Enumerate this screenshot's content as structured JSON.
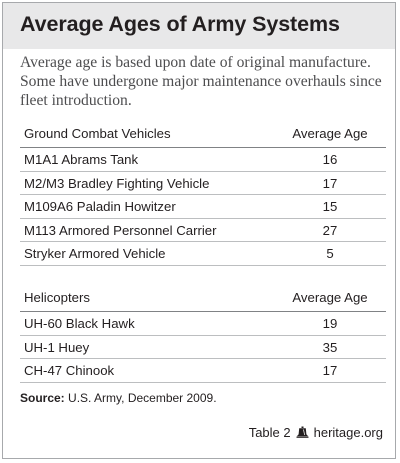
{
  "title": "Average Ages of Army Systems",
  "subtitle": "Average age is based upon date of original manufacture. Some have undergone major maintenance overhauls since fleet introduction.",
  "chart_data": [
    {
      "type": "table",
      "columns": [
        "Ground Combat Vehicles",
        "Average Age"
      ],
      "rows": [
        [
          "M1A1 Abrams Tank",
          "16"
        ],
        [
          "M2/M3 Bradley Fighting Vehicle",
          "17"
        ],
        [
          "M109A6 Paladin Howitzer",
          "15"
        ],
        [
          "M113 Armored Personnel Carrier",
          "27"
        ],
        [
          "Stryker Armored Vehicle",
          "5"
        ]
      ]
    },
    {
      "type": "table",
      "columns": [
        "Helicopters",
        "Average Age"
      ],
      "rows": [
        [
          "UH-60 Black Hawk",
          "19"
        ],
        [
          "UH-1 Huey",
          "35"
        ],
        [
          "CH-47 Chinook",
          "17"
        ]
      ]
    }
  ],
  "source": {
    "label": "Source:",
    "text": "U.S. Army, December 2009."
  },
  "footer": {
    "table_label": "Table 2",
    "site": "heritage.org",
    "icon": "liberty-bell-icon"
  },
  "colors": {
    "title_bar": "#e8e8e9",
    "border": "#a7a9ac",
    "text": "#231f20"
  }
}
